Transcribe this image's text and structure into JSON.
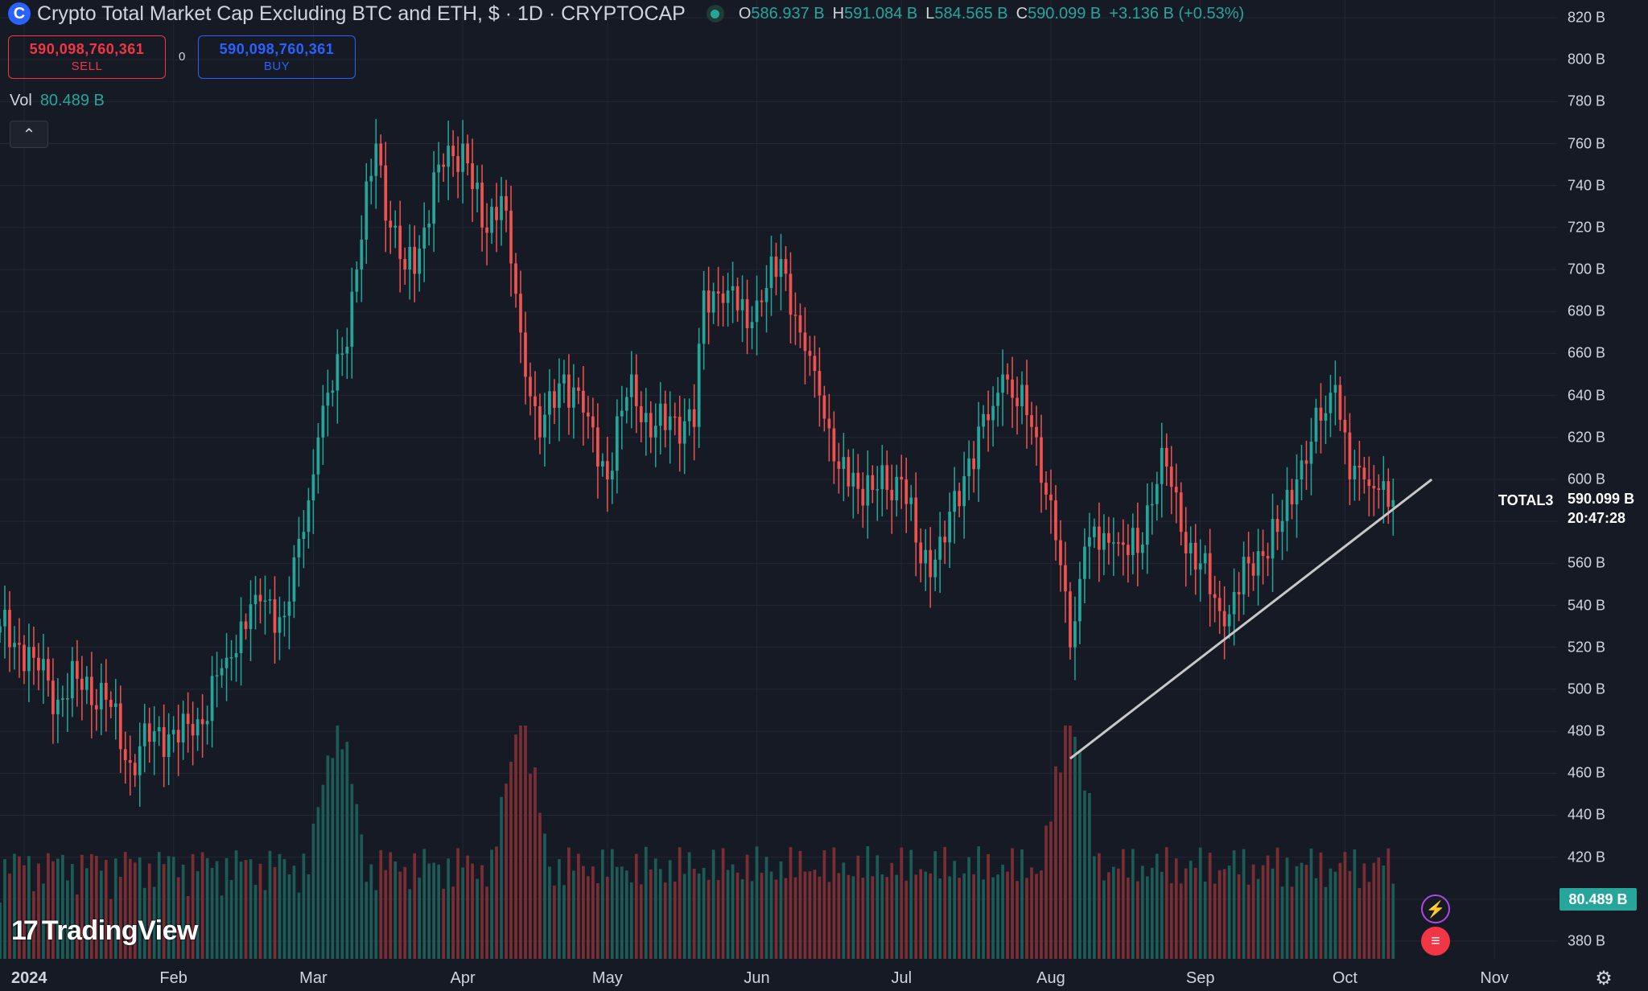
{
  "header": {
    "logo_glyph": "C",
    "title": "Crypto Total Market Cap Excluding BTC and ETH, $ · 1D · CRYPTOCAP",
    "ohlc": [
      {
        "key": "O",
        "value": "586.937 B"
      },
      {
        "key": "H",
        "value": "591.084 B"
      },
      {
        "key": "L",
        "value": "584.565 B"
      },
      {
        "key": "C",
        "value": "590.099 B"
      }
    ],
    "change": "+3.136 B (+0.53%)"
  },
  "trade": {
    "sell_price": "590,098,760,361",
    "sell_label": "SELL",
    "buy_price": "590,098,760,361",
    "buy_label": "BUY",
    "spread": "0"
  },
  "volume_legend": {
    "label": "Vol",
    "value": "80.489 B"
  },
  "collapse_glyph": "⌃",
  "brand": {
    "mark": "17",
    "name": "TradingView"
  },
  "price_marker": {
    "symbol": "TOTAL3",
    "price": "590.099 B",
    "countdown": "20:47:28"
  },
  "volume_marker": "80.489 B",
  "icons": {
    "bolt": "⚡",
    "flag": "≡",
    "settings": "⚙"
  },
  "colors": {
    "up": "#26a69a",
    "down": "#ef5350",
    "background": "#161a25",
    "trendline": "#c8c8c8"
  },
  "chart_data": {
    "type": "candlestick",
    "symbol": "TOTAL3",
    "interval": "1D",
    "y_axis": {
      "unit": "B",
      "ylim": [
        370,
        825
      ],
      "ticks": [
        380,
        400,
        420,
        440,
        460,
        480,
        500,
        520,
        540,
        560,
        580,
        600,
        620,
        640,
        660,
        680,
        700,
        720,
        740,
        760,
        780,
        800,
        820
      ],
      "tick_labels": [
        "380 B",
        "",
        "420 B",
        "440 B",
        "460 B",
        "480 B",
        "500 B",
        "520 B",
        "540 B",
        "560 B",
        "",
        "600 B",
        "620 B",
        "640 B",
        "660 B",
        "680 B",
        "700 B",
        "720 B",
        "740 B",
        "760 B",
        "780 B",
        "800 B",
        "820 B"
      ]
    },
    "x_axis": {
      "labels": [
        "2024",
        "Feb",
        "Mar",
        "Apr",
        "May",
        "Jun",
        "Jul",
        "Aug",
        "Sep",
        "Oct",
        "Nov"
      ],
      "label_dates": [
        "2024-01-01",
        "2024-02-01",
        "2024-03-01",
        "2024-04-01",
        "2024-05-01",
        "2024-06-01",
        "2024-07-01",
        "2024-08-01",
        "2024-09-01",
        "2024-10-01",
        "2024-11-01"
      ],
      "range": [
        "2023-12-27",
        "2024-11-14"
      ]
    },
    "grid": true,
    "close_waypoints": [
      {
        "date": "2023-12-27",
        "close": 530
      },
      {
        "date": "2024-01-03",
        "close": 515
      },
      {
        "date": "2024-01-08",
        "close": 495
      },
      {
        "date": "2024-01-12",
        "close": 505
      },
      {
        "date": "2024-01-18",
        "close": 495
      },
      {
        "date": "2024-01-23",
        "close": 465
      },
      {
        "date": "2024-01-28",
        "close": 480
      },
      {
        "date": "2024-02-05",
        "close": 478
      },
      {
        "date": "2024-02-12",
        "close": 515
      },
      {
        "date": "2024-02-18",
        "close": 545
      },
      {
        "date": "2024-02-24",
        "close": 535
      },
      {
        "date": "2024-02-28",
        "close": 575
      },
      {
        "date": "2024-03-02",
        "close": 620
      },
      {
        "date": "2024-03-07",
        "close": 660
      },
      {
        "date": "2024-03-10",
        "close": 700
      },
      {
        "date": "2024-03-14",
        "close": 760
      },
      {
        "date": "2024-03-17",
        "close": 720
      },
      {
        "date": "2024-03-20",
        "close": 700
      },
      {
        "date": "2024-03-23",
        "close": 710
      },
      {
        "date": "2024-03-27",
        "close": 750
      },
      {
        "date": "2024-04-01",
        "close": 760
      },
      {
        "date": "2024-04-05",
        "close": 720
      },
      {
        "date": "2024-04-09",
        "close": 735
      },
      {
        "date": "2024-04-13",
        "close": 670
      },
      {
        "date": "2024-04-17",
        "close": 620
      },
      {
        "date": "2024-04-22",
        "close": 650
      },
      {
        "date": "2024-04-27",
        "close": 630
      },
      {
        "date": "2024-05-01",
        "close": 600
      },
      {
        "date": "2024-05-06",
        "close": 650
      },
      {
        "date": "2024-05-10",
        "close": 620
      },
      {
        "date": "2024-05-14",
        "close": 630
      },
      {
        "date": "2024-05-19",
        "close": 625
      },
      {
        "date": "2024-05-21",
        "close": 690
      },
      {
        "date": "2024-05-26",
        "close": 690
      },
      {
        "date": "2024-05-31",
        "close": 675
      },
      {
        "date": "2024-06-06",
        "close": 705
      },
      {
        "date": "2024-06-10",
        "close": 670
      },
      {
        "date": "2024-06-14",
        "close": 640
      },
      {
        "date": "2024-06-18",
        "close": 605
      },
      {
        "date": "2024-06-25",
        "close": 595
      },
      {
        "date": "2024-07-01",
        "close": 600
      },
      {
        "date": "2024-07-05",
        "close": 560
      },
      {
        "date": "2024-07-10",
        "close": 570
      },
      {
        "date": "2024-07-15",
        "close": 610
      },
      {
        "date": "2024-07-20",
        "close": 635
      },
      {
        "date": "2024-07-22",
        "close": 650
      },
      {
        "date": "2024-07-28",
        "close": 625
      },
      {
        "date": "2024-08-01",
        "close": 590
      },
      {
        "date": "2024-08-05",
        "close": 520
      },
      {
        "date": "2024-08-08",
        "close": 568
      },
      {
        "date": "2024-08-14",
        "close": 570
      },
      {
        "date": "2024-08-19",
        "close": 565
      },
      {
        "date": "2024-08-24",
        "close": 615
      },
      {
        "date": "2024-08-28",
        "close": 575
      },
      {
        "date": "2024-09-01",
        "close": 560
      },
      {
        "date": "2024-09-06",
        "close": 530
      },
      {
        "date": "2024-09-11",
        "close": 560
      },
      {
        "date": "2024-09-17",
        "close": 575
      },
      {
        "date": "2024-09-21",
        "close": 600
      },
      {
        "date": "2024-09-26",
        "close": 628
      },
      {
        "date": "2024-09-29",
        "close": 645
      },
      {
        "date": "2024-10-02",
        "close": 600
      },
      {
        "date": "2024-10-05",
        "close": 600
      },
      {
        "date": "2024-10-08",
        "close": 595
      },
      {
        "date": "2024-10-10",
        "close": 586.937
      },
      {
        "date": "2024-10-11",
        "close": 590.099
      }
    ],
    "trendline": [
      {
        "date": "2024-08-05",
        "value": 467
      },
      {
        "date": "2024-10-19",
        "value": 600
      }
    ],
    "volume_panel": {
      "peak_dates": [
        "2024-03-06",
        "2024-08-05",
        "2024-04-13"
      ],
      "latest_volume": "80.489 B"
    }
  }
}
